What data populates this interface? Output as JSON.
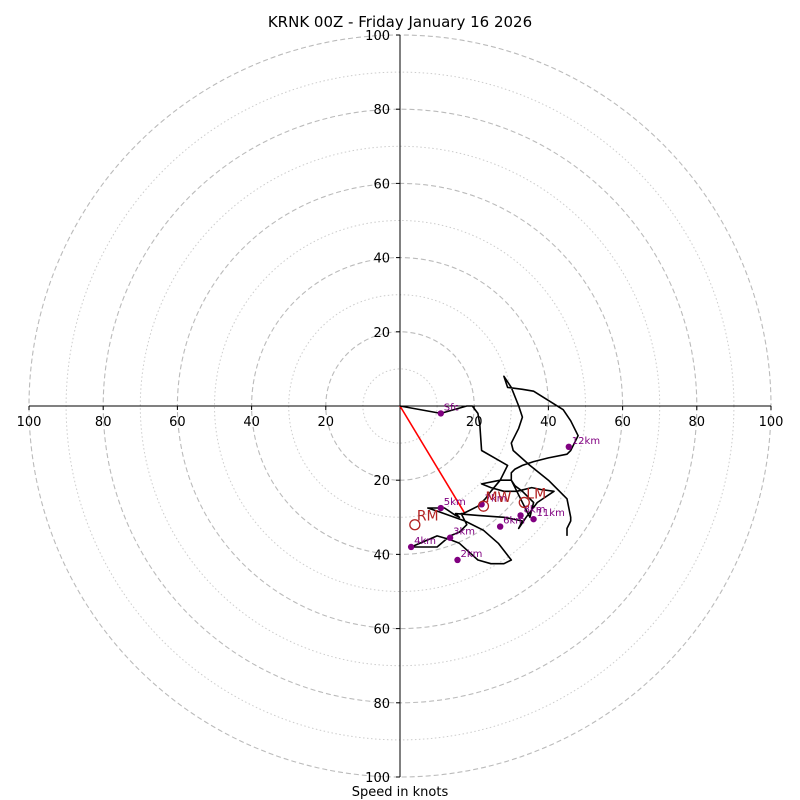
{
  "chart_data": {
    "type": "line",
    "title": "KRNK 00Z - Friday January 16 2026",
    "xlabel": "Speed in knots",
    "range": [
      -100,
      100
    ],
    "ring_major": [
      20,
      40,
      60,
      80,
      100
    ],
    "ring_minor": [
      10,
      30,
      50,
      70,
      90
    ],
    "tick_values": [
      20,
      40,
      60,
      80,
      100
    ],
    "tick_labels": [
      "20",
      "40",
      "60",
      "80",
      "100"
    ],
    "grid": true,
    "colors": {
      "hodograph": "#000000",
      "marker": "#800080",
      "storm": "#b22222",
      "shear_vector": "#ff0000",
      "ring_major": "#bbbbbb",
      "ring_minor": "#cccccc"
    },
    "series": [
      {
        "x": [
          0,
          11,
          18,
          19.5,
          21,
          21.5,
          22,
          25.5,
          29,
          27,
          24.5,
          23,
          21,
          17,
          16.5,
          18,
          16,
          13.5,
          10,
          3,
          10,
          13.5,
          16,
          21,
          24.5,
          28,
          30,
          26.5,
          22.5,
          17.5,
          10.5,
          7.5,
          12,
          15,
          16,
          15,
          21,
          28,
          33,
          32,
          34,
          37,
          41.5,
          38,
          35.5,
          31.5,
          28,
          24.5,
          22,
          27,
          30,
          32.5,
          34,
          35,
          36,
          35,
          33,
          31,
          30,
          30,
          31,
          33,
          36,
          40,
          45,
          46,
          48,
          46,
          44,
          36,
          33,
          29,
          28,
          30,
          32,
          33,
          32,
          31,
          30,
          30.5,
          35,
          40,
          45,
          46,
          46,
          45,
          45
        ],
        "y": [
          0,
          -2,
          0,
          0,
          -2,
          -5,
          -12,
          -14,
          -16,
          -20,
          -23,
          -25,
          -27,
          -29,
          -29,
          -32,
          -34,
          -35,
          -38,
          -38,
          -35,
          -36,
          -37,
          -41.5,
          -42.5,
          -42.5,
          -41.5,
          -37,
          -33.5,
          -31,
          -28.5,
          -27.5,
          -27.5,
          -29.5,
          -30,
          -29,
          -29.5,
          -30,
          -31,
          -33,
          -30,
          -26,
          -23,
          -22.5,
          -22,
          -23,
          -23,
          -22,
          -21,
          -20,
          -20,
          -25,
          -28,
          -30,
          -26,
          -25,
          -23,
          -21.5,
          -20,
          -18,
          -17,
          -16,
          -15,
          -14,
          -13,
          -12,
          -8,
          -4,
          -1,
          4,
          4.5,
          5,
          8,
          5,
          0,
          -3,
          -6,
          -8,
          -10,
          -12,
          -16,
          -20,
          -25,
          -30,
          -31,
          -33,
          -35
        ]
      }
    ],
    "height_labels": [
      {
        "label": "Sfc",
        "x": 11,
        "y": -2
      },
      {
        "label": "2km",
        "x": 15.5,
        "y": -41.5
      },
      {
        "label": "3km",
        "x": 13.5,
        "y": -35.5
      },
      {
        "label": "4km",
        "x": 3,
        "y": -38
      },
      {
        "label": "5km",
        "x": 11,
        "y": -27.5
      },
      {
        "label": "6km",
        "x": 27,
        "y": -32.5
      },
      {
        "label": "7km",
        "x": 22,
        "y": -26.5
      },
      {
        "label": "8km",
        "x": 32.5,
        "y": -29.5
      },
      {
        "label": "11km",
        "x": 36,
        "y": -30.5
      },
      {
        "label": "12km",
        "x": 45.5,
        "y": -11
      }
    ],
    "storm_motions": [
      {
        "label": "RM",
        "x": 4,
        "y": -32
      },
      {
        "label": "LM",
        "x": 33.5,
        "y": -26
      },
      {
        "label": "MW",
        "x": 22.5,
        "y": -27
      }
    ],
    "shear_vector": {
      "x": 17.5,
      "y": -29
    }
  }
}
